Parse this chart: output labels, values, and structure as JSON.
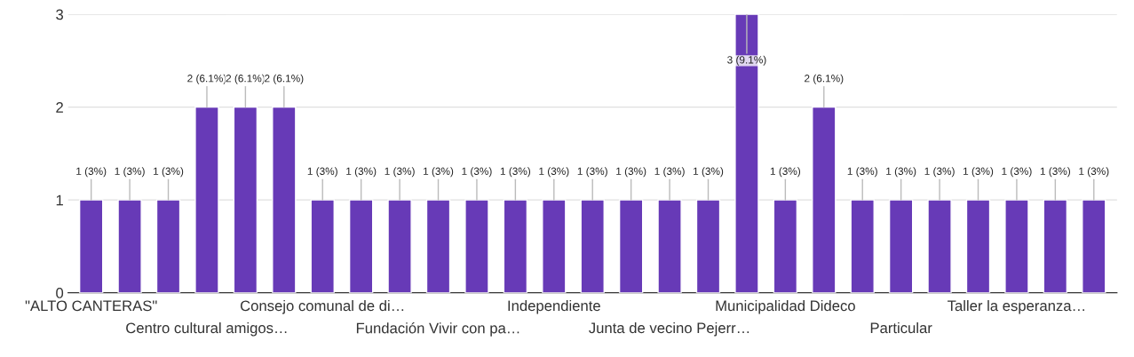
{
  "chart_data": {
    "type": "bar",
    "categories": [
      "\"ALTO CANTERAS\"",
      null,
      null,
      "Centro cultural amigos…",
      null,
      null,
      "Consejo comunal de di…",
      null,
      null,
      "Fundación Vivir con pa…",
      null,
      null,
      "Independiente",
      null,
      null,
      "Junta de vecino Pejerr…",
      null,
      null,
      "Municipalidad Dideco",
      null,
      null,
      "Particular",
      null,
      null,
      "Taller la esperanza…",
      null,
      null
    ],
    "values": [
      1,
      1,
      1,
      2,
      2,
      2,
      1,
      1,
      1,
      1,
      1,
      1,
      1,
      1,
      1,
      1,
      1,
      3,
      1,
      2,
      1,
      1,
      1,
      1,
      1,
      1,
      1
    ],
    "value_labels": [
      "1 (3%)",
      "1 (3%)",
      "1 (3%)",
      "2 (6.1%)",
      "2 (6.1%)",
      "2 (6.1%)",
      "1 (3%)",
      "1 (3%)",
      "1 (3%)",
      "1 (3%)",
      "1 (3%)",
      "1 (3%)",
      "1 (3%)",
      "1 (3%)",
      "1 (3%)",
      "1 (3%)",
      "1 (3%)",
      "3 (9.1%)",
      "1 (3%)",
      "2 (6.1%)",
      "1 (3%)",
      "1 (3%)",
      "1 (3%)",
      "1 (3%)",
      "1 (3%)",
      "1 (3%)",
      "1 (3%)"
    ],
    "color": "#673ab7",
    "ylim": [
      0,
      3
    ],
    "yticks": [
      0,
      1,
      2,
      3
    ],
    "grid": "y"
  }
}
